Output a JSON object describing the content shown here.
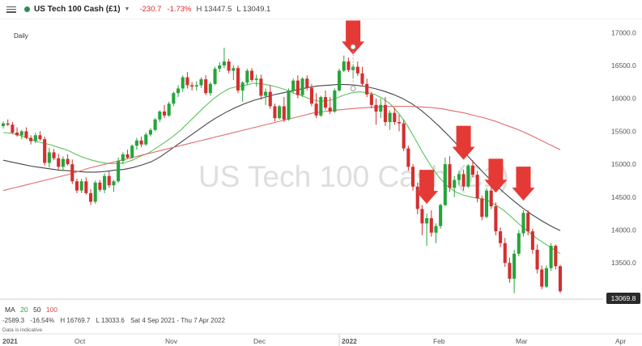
{
  "header": {
    "instrument": "US Tech 100 Cash (£1)",
    "change": "-230.7",
    "change_pct": "-1.73%",
    "high": "H 13447.5",
    "low": "L 13049.1",
    "colors": {
      "dot": "#2e8b57",
      "negative": "#d32f2f"
    }
  },
  "period": "Daily",
  "watermark": "US Tech 100 Cash (£1)",
  "price_tag": "13069.8",
  "legend": {
    "ma": "MA",
    "p1": "20",
    "p2": "50",
    "p3": "100"
  },
  "stats": {
    "change": "-2589.3",
    "change_pct": "-16.54%",
    "high": "H 16769.7",
    "low": "L 13033.6",
    "range": "Sat 4 Sep 2021 - Thu 7 Apr 2022"
  },
  "note": "Data is indicative",
  "chart_data": {
    "type": "candlestick",
    "y_ticks": [
      "17000.0",
      "16500.0",
      "16000.0",
      "15500.0",
      "15000.0",
      "14500.0",
      "14000.0",
      "13500.0"
    ],
    "ylim": [
      12950,
      17200
    ],
    "x_ticks": [
      "2021",
      "Oct",
      "Nov",
      "Dec",
      "2022",
      "Feb",
      "Mar",
      "Apr"
    ],
    "series": [
      {
        "values": [
          15480,
          15470,
          15440,
          15400,
          15350,
          15320,
          15290,
          15250,
          15210,
          15150,
          15100,
          15060,
          15030,
          15010,
          15010,
          15020,
          15060,
          15120,
          15170,
          15250,
          15330,
          15420,
          15520,
          15640,
          15760,
          15880,
          15990,
          16080,
          16150,
          16180,
          16200,
          16230,
          16220,
          16200,
          16170,
          16130,
          16080,
          16040,
          15990,
          15960,
          15960,
          15990,
          16040,
          16080,
          16100,
          16090,
          16060,
          16000,
          15910,
          15770,
          15600,
          15390,
          15170,
          14970,
          14800,
          14670,
          14580,
          14530,
          14500,
          14480,
          14450,
          14380,
          14300,
          14190,
          14080,
          13980,
          13880,
          13800,
          13720,
          13640
        ]
      },
      {
        "values": [
          15060,
          15030,
          15000,
          14970,
          14950,
          14930,
          14910,
          14900,
          14890,
          14880,
          14880,
          14890,
          14910,
          14920,
          14950,
          14990,
          15040,
          15120,
          15220,
          15320,
          15420,
          15520,
          15620,
          15710,
          15790,
          15860,
          15920,
          15970,
          16010,
          16050,
          16080,
          16110,
          16140,
          16170,
          16190,
          16200,
          16210,
          16210,
          16200,
          16180,
          16150,
          16110,
          16060,
          16000,
          15920,
          15820,
          15700,
          15570,
          15430,
          15280,
          15130,
          14980,
          14830,
          14690,
          14560,
          14440,
          14330,
          14230,
          14140,
          14060,
          13990
        ]
      },
      {
        "values": [
          14600,
          14640,
          14680,
          14720,
          14760,
          14800,
          14840,
          14890,
          14940,
          14980,
          15020,
          15060,
          15100,
          15140,
          15180,
          15220,
          15260,
          15300,
          15340,
          15380,
          15420,
          15460,
          15500,
          15540,
          15580,
          15620,
          15660,
          15700,
          15740,
          15780,
          15800,
          15820,
          15835,
          15850,
          15860,
          15870,
          15880,
          15880,
          15880,
          15870,
          15860,
          15840,
          15810,
          15780,
          15740,
          15700,
          15650,
          15590,
          15530,
          15460,
          15380,
          15300,
          15220
        ]
      }
    ],
    "candles": [
      [
        15580,
        15650,
        15540,
        15620
      ],
      [
        15620,
        15680,
        15580,
        15600
      ],
      [
        15600,
        15640,
        15460,
        15480
      ],
      [
        15480,
        15560,
        15420,
        15440
      ],
      [
        15440,
        15520,
        15380,
        15500
      ],
      [
        15500,
        15560,
        15380,
        15400
      ],
      [
        15400,
        15440,
        15300,
        15350
      ],
      [
        15350,
        15480,
        15320,
        15440
      ],
      [
        15440,
        15500,
        15360,
        15380
      ],
      [
        15380,
        15420,
        14980,
        15020
      ],
      [
        15020,
        15250,
        14950,
        15180
      ],
      [
        15180,
        15230,
        15060,
        15090
      ],
      [
        15090,
        15160,
        14920,
        14960
      ],
      [
        14960,
        15120,
        14900,
        15080
      ],
      [
        15080,
        15150,
        14980,
        15000
      ],
      [
        15000,
        15070,
        14700,
        14740
      ],
      [
        14740,
        14780,
        14560,
        14600
      ],
      [
        14600,
        14780,
        14560,
        14740
      ],
      [
        14740,
        14800,
        14540,
        14560
      ],
      [
        14560,
        14620,
        14380,
        14430
      ],
      [
        14430,
        14750,
        14400,
        14720
      ],
      [
        14720,
        14760,
        14580,
        14610
      ],
      [
        14610,
        14860,
        14560,
        14820
      ],
      [
        14820,
        14900,
        14640,
        14680
      ],
      [
        14680,
        14760,
        14580,
        14740
      ],
      [
        14740,
        15100,
        14720,
        15050
      ],
      [
        15050,
        15180,
        15000,
        15150
      ],
      [
        15150,
        15220,
        15080,
        15100
      ],
      [
        15100,
        15300,
        15080,
        15280
      ],
      [
        15280,
        15400,
        15220,
        15360
      ],
      [
        15360,
        15420,
        15260,
        15300
      ],
      [
        15300,
        15480,
        15280,
        15450
      ],
      [
        15450,
        15550,
        15420,
        15520
      ],
      [
        15520,
        15700,
        15500,
        15680
      ],
      [
        15680,
        15820,
        15640,
        15800
      ],
      [
        15800,
        15900,
        15700,
        15740
      ],
      [
        15740,
        15950,
        15720,
        15920
      ],
      [
        15920,
        16100,
        15880,
        16080
      ],
      [
        16080,
        16200,
        16020,
        16150
      ],
      [
        16150,
        16350,
        16100,
        16320
      ],
      [
        16320,
        16400,
        16150,
        16200
      ],
      [
        16200,
        16250,
        16120,
        16180
      ],
      [
        16180,
        16260,
        16120,
        16200
      ],
      [
        16200,
        16320,
        16160,
        16290
      ],
      [
        16290,
        16350,
        16050,
        16080
      ],
      [
        16080,
        16250,
        16040,
        16220
      ],
      [
        16220,
        16480,
        16200,
        16450
      ],
      [
        16450,
        16550,
        16400,
        16500
      ],
      [
        16500,
        16770,
        16460,
        16560
      ],
      [
        16560,
        16600,
        16380,
        16420
      ],
      [
        16420,
        16500,
        16280,
        16460
      ],
      [
        16460,
        16500,
        16080,
        16120
      ],
      [
        16120,
        16260,
        15950,
        16240
      ],
      [
        16240,
        16450,
        16200,
        16420
      ],
      [
        16420,
        16460,
        16250,
        16280
      ],
      [
        16280,
        16360,
        16180,
        16300
      ],
      [
        16300,
        16360,
        15980,
        16040
      ],
      [
        16040,
        16150,
        15900,
        16100
      ],
      [
        16100,
        16200,
        15840,
        15880
      ],
      [
        15880,
        15920,
        15650,
        15700
      ],
      [
        15700,
        15900,
        15680,
        15880
      ],
      [
        15880,
        16020,
        15640,
        15680
      ],
      [
        15680,
        16150,
        15660,
        16120
      ],
      [
        16120,
        16300,
        16080,
        16270
      ],
      [
        16270,
        16350,
        16000,
        16050
      ],
      [
        16050,
        16320,
        16020,
        16300
      ],
      [
        16300,
        16350,
        16120,
        16160
      ],
      [
        16160,
        16220,
        15880,
        15920
      ],
      [
        15920,
        16080,
        15700,
        15740
      ],
      [
        15740,
        16040,
        15720,
        16020
      ],
      [
        16020,
        16120,
        15820,
        15860
      ],
      [
        15860,
        16020,
        15760,
        15800
      ],
      [
        15800,
        16150,
        15780,
        16120
      ],
      [
        16120,
        16450,
        16100,
        16420
      ],
      [
        16420,
        16650,
        16400,
        16560
      ],
      [
        16560,
        16620,
        16400,
        16430
      ],
      [
        16430,
        16520,
        16300,
        16480
      ],
      [
        16480,
        16560,
        16340,
        16380
      ],
      [
        16380,
        16480,
        16180,
        16220
      ],
      [
        16220,
        16300,
        16020,
        16060
      ],
      [
        16060,
        16100,
        15850,
        15900
      ],
      [
        15900,
        16000,
        15600,
        15800
      ],
      [
        15800,
        16000,
        15700,
        15900
      ],
      [
        15900,
        16020,
        15580,
        15640
      ],
      [
        15640,
        15820,
        15520,
        15780
      ],
      [
        15780,
        15860,
        15600,
        15640
      ],
      [
        15640,
        15750,
        15500,
        15620
      ],
      [
        15620,
        15680,
        15200,
        15240
      ],
      [
        15240,
        15280,
        14900,
        14960
      ],
      [
        14960,
        15000,
        14600,
        14660
      ],
      [
        14660,
        14720,
        14240,
        14320
      ],
      [
        14320,
        14380,
        13920,
        14100
      ],
      [
        14100,
        14250,
        13760,
        14180
      ],
      [
        14180,
        14300,
        13900,
        13960
      ],
      [
        13960,
        14100,
        13800,
        14060
      ],
      [
        14060,
        14400,
        14020,
        14380
      ],
      [
        14380,
        15100,
        14360,
        15000
      ],
      [
        15000,
        15120,
        14580,
        14640
      ],
      [
        14640,
        14820,
        14500,
        14760
      ],
      [
        14760,
        14900,
        14680,
        14850
      ],
      [
        14850,
        14920,
        14600,
        14660
      ],
      [
        14660,
        15000,
        14640,
        14980
      ],
      [
        14980,
        15060,
        14800,
        14840
      ],
      [
        14840,
        14900,
        14420,
        14480
      ],
      [
        14480,
        14520,
        14150,
        14200
      ],
      [
        14200,
        14640,
        14180,
        14600
      ],
      [
        14600,
        14680,
        14320,
        14360
      ],
      [
        14360,
        14420,
        13920,
        13980
      ],
      [
        13980,
        14040,
        13740,
        13800
      ],
      [
        13800,
        13880,
        13440,
        13500
      ],
      [
        13500,
        13580,
        13200,
        13260
      ],
      [
        13260,
        13700,
        13040,
        13640
      ],
      [
        13640,
        14000,
        13600,
        13950
      ],
      [
        13950,
        14300,
        13900,
        14260
      ],
      [
        14260,
        14300,
        13920,
        13980
      ],
      [
        13980,
        14020,
        13640,
        13700
      ],
      [
        13700,
        13780,
        13340,
        13400
      ],
      [
        13400,
        13460,
        13100,
        13140
      ],
      [
        13140,
        13460,
        13120,
        13420
      ],
      [
        13420,
        13800,
        13380,
        13760
      ],
      [
        13760,
        13780,
        13400,
        13450
      ],
      [
        13450,
        13470,
        13040,
        13070
      ]
    ]
  }
}
